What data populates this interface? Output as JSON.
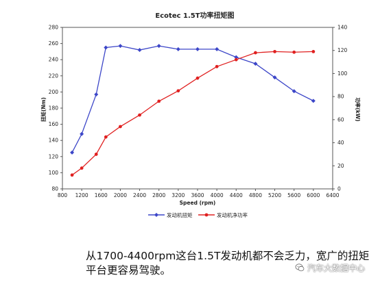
{
  "chart_data": {
    "type": "line",
    "title": "Ecotec 1.5T功率扭矩图",
    "xlabel": "Speed (rpm)",
    "ylabel_left": "扭矩(Nm)",
    "ylabel_right": "功率(kW)",
    "xlim": [
      800,
      6400
    ],
    "xticks": [
      800,
      1200,
      1600,
      2000,
      2400,
      2800,
      3200,
      3600,
      4000,
      4400,
      4800,
      5200,
      5600,
      6000,
      6400
    ],
    "ylim_left": [
      80,
      280
    ],
    "yticks_left": [
      80,
      100,
      120,
      140,
      160,
      180,
      200,
      220,
      240,
      260,
      280
    ],
    "ylim_right": [
      0,
      140
    ],
    "yticks_right": [
      0,
      20,
      40,
      60,
      80,
      100,
      120,
      140
    ],
    "grid": false,
    "legend": "bottom",
    "series": [
      {
        "name": "发动机扭矩",
        "axis": "left",
        "color": "#3c46c8",
        "marker": "diamond",
        "x": [
          1000,
          1200,
          1500,
          1700,
          2000,
          2400,
          2800,
          3200,
          3600,
          4000,
          4400,
          4800,
          5200,
          5600,
          6000
        ],
        "y": [
          125,
          148,
          197,
          255,
          257,
          252,
          257,
          253,
          253,
          253,
          243,
          235,
          218,
          201,
          189
        ]
      },
      {
        "name": "发动机净功率",
        "axis": "right",
        "color": "#e02020",
        "marker": "circle",
        "x": [
          1000,
          1200,
          1500,
          1700,
          2000,
          2400,
          2800,
          3200,
          3600,
          4000,
          4400,
          4800,
          5200,
          5600,
          6000
        ],
        "y": [
          12,
          18,
          30,
          45,
          54,
          64,
          76,
          85,
          96,
          106,
          112,
          118,
          119,
          118.5,
          119
        ]
      }
    ]
  },
  "caption": "从1700-4400rpm这台1.5T发动机都不会乏力，宽广的扭矩平台更容易驾驶。",
  "watermark": "汽车大数据中心"
}
